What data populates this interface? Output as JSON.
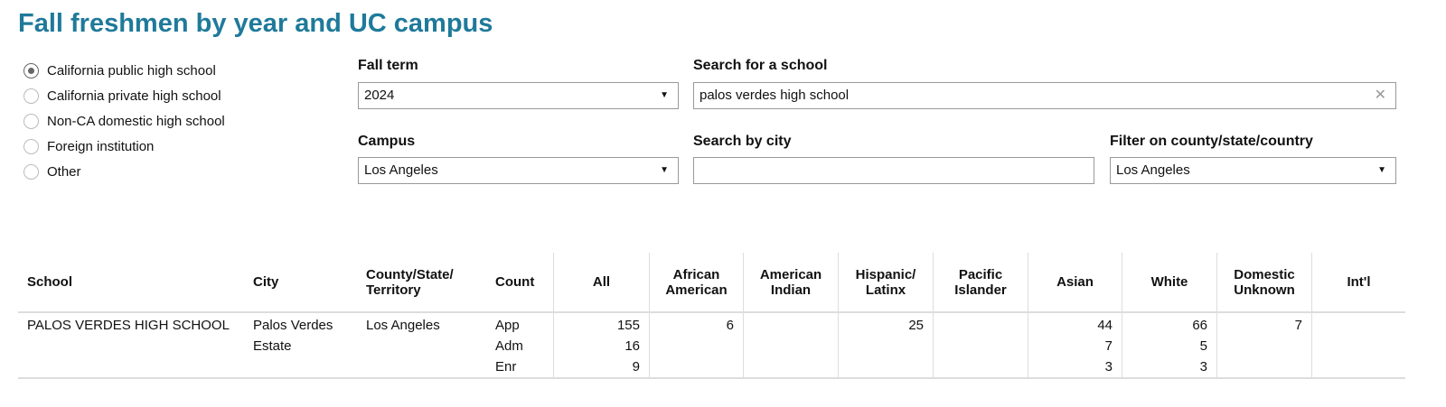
{
  "title": "Fall freshmen by year and UC campus",
  "radios": [
    {
      "label": "California public high school",
      "checked": true
    },
    {
      "label": "California private high school",
      "checked": false
    },
    {
      "label": "Non-CA domestic high school",
      "checked": false
    },
    {
      "label": "Foreign institution",
      "checked": false
    },
    {
      "label": "Other",
      "checked": false
    }
  ],
  "filters": {
    "fall_term": {
      "label": "Fall term",
      "value": "2024"
    },
    "search_school": {
      "label": "Search for a school",
      "value": "palos verdes high school"
    },
    "campus": {
      "label": "Campus",
      "value": "Los Angeles"
    },
    "search_city": {
      "label": "Search by city",
      "value": ""
    },
    "county": {
      "label": "Filter on county/state/country",
      "value": "Los Angeles"
    }
  },
  "table": {
    "headers": [
      "School",
      "City",
      "County/State/ Territory",
      "Count",
      "All",
      "African American",
      "American Indian",
      "Hispanic/ Latinx",
      "Pacific Islander",
      "Asian",
      "White",
      "Domestic Unknown",
      "Int'l"
    ],
    "row": {
      "school": "PALOS VERDES HIGH SCHOOL",
      "city": "Palos Verdes Estate",
      "county": "Los Angeles",
      "counts": [
        "App",
        "Adm",
        "Enr"
      ],
      "values": [
        [
          "155",
          "16",
          "9"
        ],
        [
          "6",
          "",
          ""
        ],
        [
          "",
          "",
          ""
        ],
        [
          "25",
          "",
          ""
        ],
        [
          "",
          "",
          ""
        ],
        [
          "44",
          "7",
          "3"
        ],
        [
          "66",
          "5",
          "3"
        ],
        [
          "7",
          "",
          ""
        ],
        [
          "",
          "",
          ""
        ]
      ]
    }
  }
}
